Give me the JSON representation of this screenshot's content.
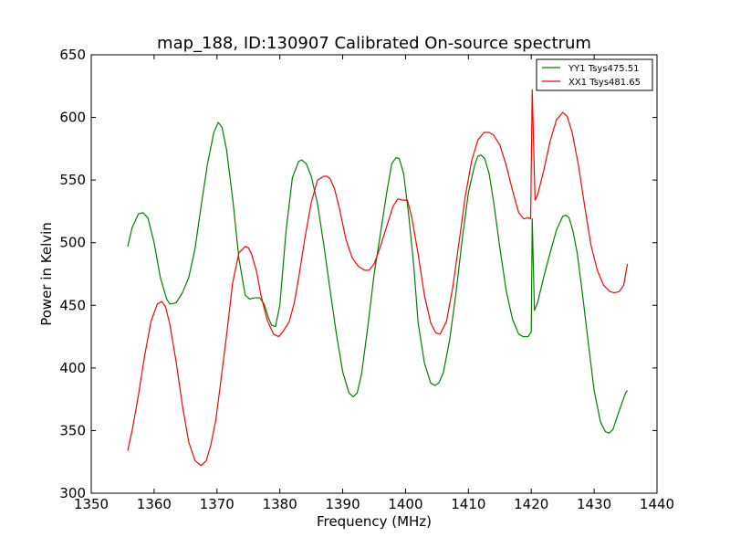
{
  "chart_data": {
    "type": "line",
    "title": "map_188, ID:130907 Calibrated On-source spectrum",
    "xlabel": "Frequency (MHz)",
    "ylabel": "Power in Kelvin",
    "xlim": [
      1350,
      1440
    ],
    "ylim": [
      300,
      650
    ],
    "xticks": [
      1350,
      1360,
      1370,
      1380,
      1390,
      1400,
      1410,
      1420,
      1430,
      1440
    ],
    "xtick_labels": [
      "1350",
      "1360",
      "1370",
      "1380",
      "1390",
      "1400",
      "1410",
      "1420",
      "1430",
      "1440"
    ],
    "yticks": [
      300,
      350,
      400,
      450,
      500,
      550,
      600,
      650
    ],
    "ytick_labels": [
      "300",
      "350",
      "400",
      "450",
      "500",
      "550",
      "600",
      "650"
    ],
    "grid": false,
    "legend_position": "top-right",
    "series": [
      {
        "name": "YY1 Tsys475.51",
        "color": "#008000",
        "x": [
          1355.8,
          1356.5,
          1357.5,
          1358.2,
          1359,
          1360,
          1361,
          1362,
          1362.5,
          1363.5,
          1364.5,
          1365.5,
          1366.5,
          1367.5,
          1368.5,
          1369.5,
          1370.2,
          1370.8,
          1371.5,
          1372.5,
          1373.5,
          1374.5,
          1375.2,
          1376,
          1376.8,
          1377.5,
          1378.2,
          1378.7,
          1379.3,
          1380,
          1381,
          1382,
          1383,
          1383.5,
          1384.2,
          1385,
          1386,
          1387,
          1388,
          1389,
          1390,
          1391,
          1391.7,
          1392.3,
          1393,
          1394,
          1395,
          1396,
          1397,
          1397.8,
          1398.5,
          1399,
          1399.7,
          1400.5,
          1401.3,
          1402,
          1403,
          1404,
          1404.7,
          1405.3,
          1406,
          1407,
          1408,
          1409,
          1410,
          1411,
          1411.5,
          1412,
          1412.6,
          1413.3,
          1414,
          1415,
          1416,
          1417,
          1418,
          1418.7,
          1419.5,
          1420,
          1420.15,
          1420.5,
          1421,
          1422,
          1423,
          1424,
          1425,
          1425.5,
          1426,
          1426.6,
          1427.3,
          1428,
          1429,
          1430,
          1431,
          1431.8,
          1432.4,
          1433,
          1434,
          1435,
          1435.3
        ],
        "values": [
          497,
          512,
          523,
          524,
          520,
          500,
          472,
          455,
          451,
          452,
          460,
          472,
          495,
          530,
          563,
          588,
          596,
          592,
          575,
          535,
          487,
          458,
          455,
          456,
          456,
          451,
          440,
          434,
          433,
          450,
          510,
          552,
          565,
          566,
          563,
          553,
          531,
          498,
          462,
          427,
          397,
          380,
          377,
          380,
          395,
          433,
          475,
          507,
          540,
          563,
          568,
          567,
          555,
          522,
          482,
          436,
          404,
          388,
          386,
          388,
          396,
          422,
          459,
          502,
          540,
          562,
          569,
          570,
          567,
          555,
          533,
          496,
          462,
          439,
          427,
          425,
          425,
          429,
          519,
          446,
          452,
          473,
          492,
          510,
          521,
          522,
          520,
          510,
          492,
          465,
          423,
          382,
          357,
          349,
          348,
          351,
          366,
          380,
          382
        ]
      },
      {
        "name": "XX1 Tsys481.65",
        "color": "#ff0000",
        "x": [
          1355.8,
          1356.5,
          1357.5,
          1358.5,
          1359.5,
          1360.5,
          1361.2,
          1361.8,
          1362.5,
          1363.5,
          1364.5,
          1365.5,
          1366.5,
          1367.5,
          1368.3,
          1369,
          1369.8,
          1370.5,
          1371.5,
          1372.5,
          1373.5,
          1374.5,
          1375,
          1375.5,
          1376.3,
          1377,
          1378,
          1379,
          1379.8,
          1380.5,
          1381.5,
          1382.3,
          1383,
          1384,
          1385,
          1386,
          1387,
          1387.5,
          1388,
          1388.7,
          1389.5,
          1390.5,
          1391.5,
          1392.5,
          1393.5,
          1394.2,
          1395,
          1396,
          1397,
          1398,
          1398.8,
          1399.5,
          1400.3,
          1401,
          1402,
          1403,
          1404,
          1404.8,
          1405.5,
          1406.5,
          1407.5,
          1408.5,
          1409.5,
          1410.5,
          1411.5,
          1412.5,
          1413.3,
          1414,
          1415,
          1416,
          1417,
          1418,
          1418.8,
          1419.5,
          1419.9,
          1420.15,
          1420.6,
          1421,
          1422,
          1423,
          1424,
          1425,
          1425.7,
          1426.5,
          1427.5,
          1428.5,
          1429.5,
          1430.5,
          1431.5,
          1432.5,
          1433.2,
          1434,
          1434.7,
          1435.3
        ],
        "values": [
          334,
          350,
          378,
          410,
          437,
          451,
          453,
          449,
          435,
          405,
          370,
          341,
          326,
          322,
          326,
          338,
          358,
          385,
          425,
          468,
          492,
          497,
          496,
          491,
          477,
          458,
          438,
          427,
          425,
          429,
          437,
          452,
          472,
          504,
          532,
          550,
          553,
          553,
          551,
          543,
          527,
          503,
          488,
          481,
          478,
          478,
          483,
          497,
          513,
          529,
          535,
          534,
          534,
          520,
          491,
          458,
          436,
          428,
          427,
          437,
          464,
          500,
          537,
          565,
          582,
          588,
          588,
          586,
          578,
          562,
          542,
          524,
          519,
          520,
          519,
          622,
          534,
          538,
          558,
          581,
          598,
          604,
          601,
          588,
          562,
          529,
          498,
          478,
          466,
          461,
          460,
          461,
          466,
          483
        ]
      }
    ]
  }
}
